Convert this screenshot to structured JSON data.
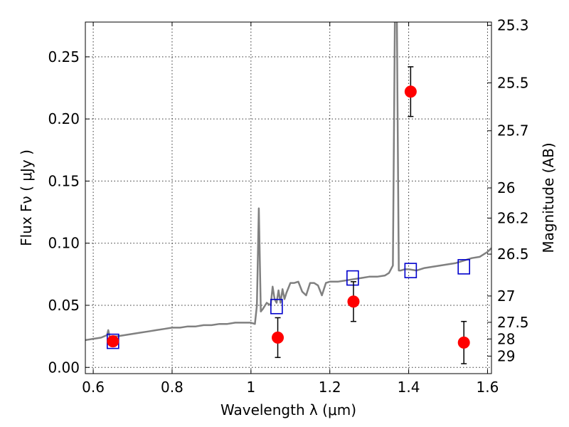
{
  "chart_data": {
    "type": "scatter",
    "xlabel": "Wavelength  λ (μm)",
    "ylabel": "Flux  Fν  ( μJy )",
    "y2label": "Magnitude (AB)",
    "xlim": [
      0.58,
      1.61
    ],
    "ylim": [
      -0.005,
      0.278
    ],
    "grid": true,
    "x_ticks": [
      0.6,
      0.8,
      1.0,
      1.2,
      1.4,
      1.6
    ],
    "x_tick_labels": [
      "0.6",
      "0.8",
      "1",
      "1.2",
      "1.4",
      "1.6"
    ],
    "y_ticks": [
      0.0,
      0.05,
      0.1,
      0.15,
      0.2,
      0.25
    ],
    "y_tick_labels": [
      "0.00",
      "0.05",
      "0.10",
      "0.15",
      "0.20",
      "0.25"
    ],
    "magnitude_ticks": [
      {
        "label": "25.3",
        "flux": 0.2754
      },
      {
        "label": "25.5",
        "flux": 0.2291
      },
      {
        "label": "25.7",
        "flux": 0.1905
      },
      {
        "label": "26",
        "flux": 0.1445
      },
      {
        "label": "26.2",
        "flux": 0.1202
      },
      {
        "label": "26.5",
        "flux": 0.0912
      },
      {
        "label": "27",
        "flux": 0.0575
      },
      {
        "label": "27.5",
        "flux": 0.0363
      },
      {
        "label": "28",
        "flux": 0.0229
      },
      {
        "label": "29",
        "flux": 0.0091
      }
    ],
    "series": [
      {
        "kind": "line",
        "color": "#808080",
        "x": [
          0.58,
          0.6,
          0.62,
          0.635,
          0.638,
          0.642,
          0.65,
          0.66,
          0.68,
          0.7,
          0.72,
          0.74,
          0.76,
          0.78,
          0.8,
          0.82,
          0.84,
          0.86,
          0.88,
          0.9,
          0.92,
          0.94,
          0.96,
          0.98,
          1.0,
          1.01,
          1.015,
          1.02,
          1.025,
          1.03,
          1.04,
          1.05,
          1.055,
          1.06,
          1.065,
          1.07,
          1.075,
          1.08,
          1.085,
          1.09,
          1.1,
          1.11,
          1.12,
          1.13,
          1.14,
          1.15,
          1.16,
          1.17,
          1.18,
          1.19,
          1.2,
          1.22,
          1.24,
          1.26,
          1.28,
          1.3,
          1.32,
          1.34,
          1.35,
          1.36,
          1.365,
          1.37,
          1.375,
          1.38,
          1.39,
          1.4,
          1.42,
          1.44,
          1.46,
          1.48,
          1.5,
          1.52,
          1.54,
          1.56,
          1.58,
          1.6,
          1.61
        ],
        "y": [
          0.022,
          0.023,
          0.024,
          0.026,
          0.03,
          0.024,
          0.025,
          0.025,
          0.026,
          0.027,
          0.028,
          0.029,
          0.03,
          0.031,
          0.032,
          0.032,
          0.033,
          0.033,
          0.034,
          0.034,
          0.035,
          0.035,
          0.036,
          0.036,
          0.036,
          0.035,
          0.05,
          0.128,
          0.045,
          0.047,
          0.052,
          0.05,
          0.065,
          0.055,
          0.052,
          0.062,
          0.052,
          0.063,
          0.055,
          0.06,
          0.068,
          0.068,
          0.069,
          0.061,
          0.058,
          0.068,
          0.068,
          0.066,
          0.058,
          0.068,
          0.069,
          0.069,
          0.07,
          0.071,
          0.072,
          0.073,
          0.073,
          0.074,
          0.076,
          0.082,
          0.28,
          0.28,
          0.078,
          0.078,
          0.079,
          0.079,
          0.078,
          0.08,
          0.081,
          0.082,
          0.083,
          0.084,
          0.086,
          0.088,
          0.089,
          0.093,
          0.096
        ]
      },
      {
        "kind": "squares",
        "color": "#0000cc",
        "x": [
          0.65,
          1.065,
          1.258,
          1.405,
          1.54
        ],
        "y": [
          0.021,
          0.049,
          0.072,
          0.078,
          0.081
        ]
      },
      {
        "kind": "points",
        "color": "#ff0000",
        "x": [
          0.65,
          1.068,
          1.26,
          1.405,
          1.54
        ],
        "y": [
          0.021,
          0.024,
          0.053,
          0.222,
          0.02
        ],
        "yerr": [
          0.004,
          0.016,
          0.016,
          0.02,
          0.017
        ]
      }
    ]
  }
}
